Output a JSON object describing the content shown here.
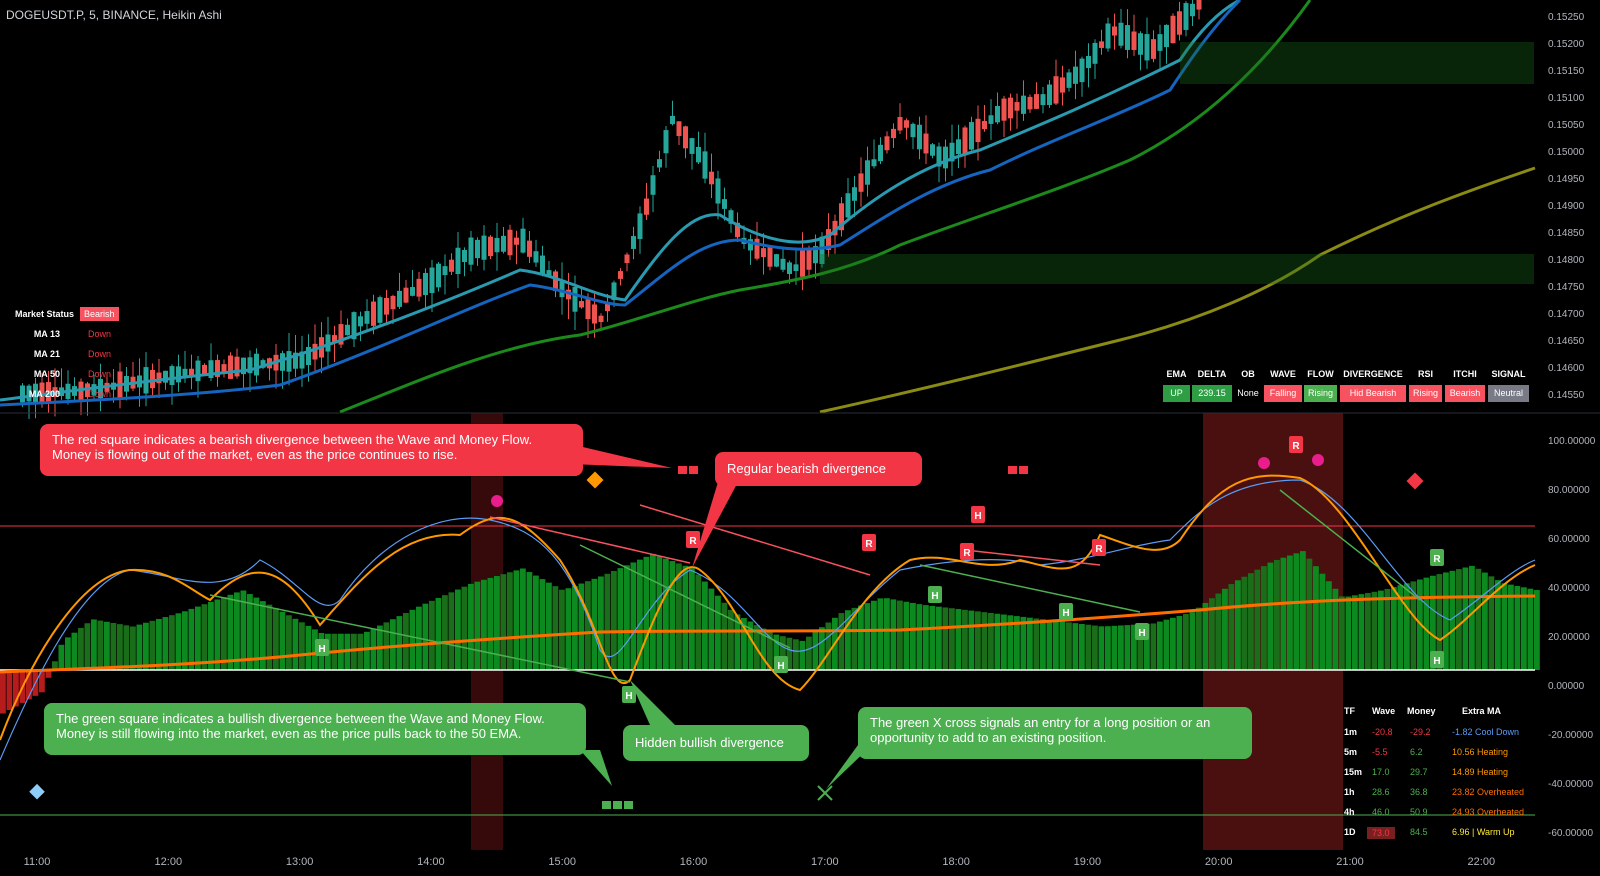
{
  "header": {
    "symbol": "DOGEUSDT.P, 5, BINANCE, Heikin Ashi"
  },
  "price_axis": [
    "0.15250",
    "0.15200",
    "0.15150",
    "0.15100",
    "0.15050",
    "0.15000",
    "0.14950",
    "0.14900",
    "0.14850",
    "0.14800",
    "0.14750",
    "0.14700",
    "0.14650",
    "0.14600",
    "0.14550"
  ],
  "osc_axis": [
    "100.00000",
    "80.00000",
    "60.00000",
    "40.00000",
    "20.00000",
    "0.00000",
    "-20.00000",
    "-40.00000",
    "-60.00000"
  ],
  "time_axis": [
    "11:00",
    "12:00",
    "13:00",
    "14:00",
    "15:00",
    "16:00",
    "17:00",
    "18:00",
    "19:00",
    "20:00",
    "21:00",
    "22:00"
  ],
  "market_status": {
    "rows": [
      {
        "label": "Market Status",
        "value": "Bearish"
      },
      {
        "label": "MA 13",
        "value": "Down"
      },
      {
        "label": "MA 21",
        "value": "Down"
      },
      {
        "label": "MA 50",
        "value": "Down"
      },
      {
        "label": "MA 200",
        "value": "Down"
      }
    ]
  },
  "status_table": {
    "headers": [
      "EMA",
      "DELTA",
      "OB",
      "WAVE",
      "FLOW",
      "DIVERGENCE",
      "RSI",
      "ITCHI",
      "SIGNAL"
    ],
    "values": [
      "UP",
      "239.15",
      "None",
      "Falling",
      "Rising",
      "Hid Bearish",
      "Rising",
      "Bearish",
      "Neutral"
    ],
    "colors": [
      "#2e9e44",
      "#2e9e44",
      "#000000",
      "#f7525f",
      "#4caf50",
      "#f7525f",
      "#f7525f",
      "#f7525f",
      "#787b86"
    ]
  },
  "callouts": {
    "red_square": "The red square indicates a bearish divergence between the Wave and Money Flow. Money is flowing out of the market, even as the price continues to rise.",
    "regular_bearish": "Regular bearish divergence",
    "green_square": "The green square indicates a bullish divergence between the Wave and Money Flow. Money is still flowing into the market, even as the price pulls back to the 50 EMA.",
    "hidden_bullish": "Hidden bullish divergence",
    "green_x": "The green X cross signals an entry for a long position or an opportunity to add to an existing position."
  },
  "tf_table": {
    "headers": [
      "TF",
      "Wave",
      "Money",
      "Extra MA"
    ],
    "rows": [
      {
        "tf": "1m",
        "wave": "-20.8",
        "money": "-29.2",
        "extra": "-1.82 Cool Down",
        "wave_color": "#f23645",
        "money_color": "#f23645",
        "extra_color": "#5b9cf6"
      },
      {
        "tf": "5m",
        "wave": "-5.5",
        "money": "6.2",
        "extra": "10.56 Heating",
        "wave_color": "#f23645",
        "money_color": "#4caf50",
        "extra_color": "#ff9800"
      },
      {
        "tf": "15m",
        "wave": "17.0",
        "money": "29.7",
        "extra": "14.89 Heating",
        "wave_color": "#4caf50",
        "money_color": "#4caf50",
        "extra_color": "#ff9800"
      },
      {
        "tf": "1h",
        "wave": "28.6",
        "money": "36.8",
        "extra": "23.82 Overheated",
        "wave_color": "#4caf50",
        "money_color": "#4caf50",
        "extra_color": "#ff6d00"
      },
      {
        "tf": "4h",
        "wave": "46.0",
        "money": "50.9",
        "extra": "24.93 Overheated",
        "wave_color": "#4caf50",
        "money_color": "#4caf50",
        "extra_color": "#ff6d00"
      },
      {
        "tf": "1D",
        "wave": "73.0",
        "money": "84.5",
        "extra": "6.96 | Warm Up",
        "wave_color": "#f23645",
        "money_color": "#4caf50",
        "extra_color": "#ffeb3b"
      }
    ]
  },
  "colors": {
    "up": "#26a69a",
    "down": "#ef5350",
    "bg": "#000000",
    "grid_red": "#f23645",
    "wave_orange": "#ff9800",
    "money_green": "#0d8a1f"
  }
}
